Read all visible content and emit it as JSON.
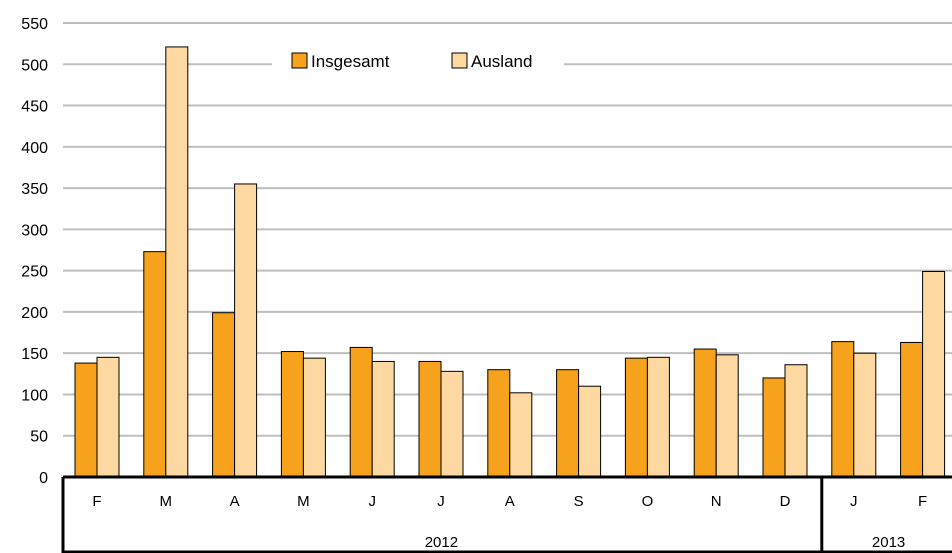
{
  "chart_data": {
    "type": "bar",
    "title": "",
    "xlabel": "",
    "ylabel": "",
    "ylim": [
      0,
      550
    ],
    "yticks": [
      0,
      50,
      100,
      150,
      200,
      250,
      300,
      350,
      400,
      450,
      500,
      550
    ],
    "grid": true,
    "legend_position": "top-center",
    "categories": [
      "F",
      "M",
      "A",
      "M",
      "J",
      "J",
      "A",
      "S",
      "O",
      "N",
      "D",
      "J",
      "F"
    ],
    "groups": [
      {
        "label": "2012",
        "count": 11
      },
      {
        "label": "2013",
        "count": 2
      }
    ],
    "series": [
      {
        "name": "Insgesamt",
        "color": "#F7A21D",
        "values": [
          138,
          273,
          199,
          152,
          157,
          140,
          130,
          130,
          144,
          155,
          120,
          164,
          163
        ]
      },
      {
        "name": "Ausland",
        "color": "#FDD9A1",
        "values": [
          145,
          521,
          355,
          144,
          140,
          128,
          102,
          110,
          145,
          148,
          136,
          150,
          249
        ]
      }
    ]
  }
}
